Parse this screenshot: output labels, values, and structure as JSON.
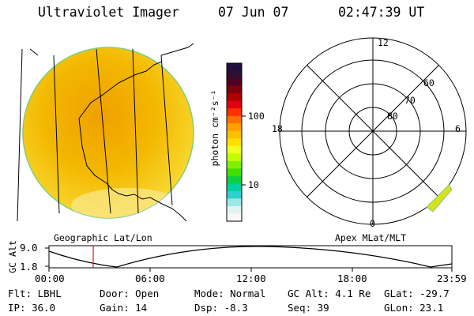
{
  "header": {
    "instrument": "Ultraviolet Imager",
    "date": "07 Jun 07",
    "time": "02:47:39 UT"
  },
  "left_panel": {
    "caption": "Geographic Lat/Lon"
  },
  "colorbar": {
    "unit_label": "photon cm⁻²s⁻¹",
    "tick_100": "100",
    "tick_10": "10",
    "colors": [
      "#201040",
      "#301030",
      "#500020",
      "#800010",
      "#b00000",
      "#e00010",
      "#ff3000",
      "#ff7000",
      "#ffa000",
      "#ffc000",
      "#ffe000",
      "#f0ff20",
      "#c0ff00",
      "#80f000",
      "#40e000",
      "#10d040",
      "#00d0a0",
      "#30d0d0",
      "#a0e8e8",
      "#e0f4f4",
      "#f8f8f8"
    ]
  },
  "right_panel": {
    "caption": "Apex MLat/MLT",
    "mlt_12": "12",
    "mlt_18": "18",
    "mlt_6": "6",
    "mlt_0": "0",
    "mlat_60": "60",
    "mlat_70": "70",
    "mlat_80": "80"
  },
  "altitude_plot": {
    "ylabel": "GC Alt",
    "ytick_top": "9.0",
    "ytick_bottom": "1.8",
    "xticks": [
      "00:00",
      "06:00",
      "12:00",
      "18:00",
      "23:59"
    ]
  },
  "footer": {
    "flt": "Flt: LBHL",
    "ip": "IP: 36.0",
    "door": "Door: Open",
    "gain": "Gain: 14",
    "mode": "Mode: Normal",
    "dsp": "Dsp:   -8.3",
    "gc_alt": "GC Alt: 4.1 Re",
    "seq": "Seq: 39",
    "glat": "GLat: -29.7",
    "glon": "GLon:  23.1"
  }
}
